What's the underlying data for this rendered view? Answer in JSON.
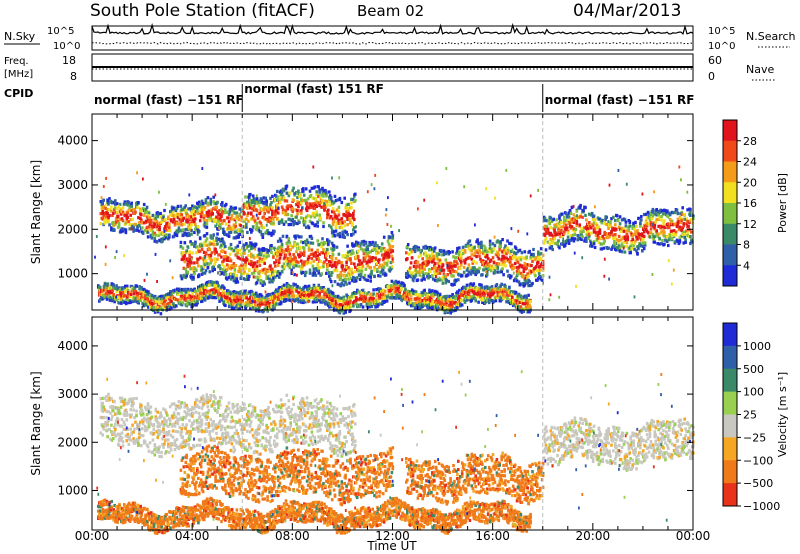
{
  "title": "South Pole Station (fitACF)",
  "beam": "Beam 02",
  "date": "04/Mar/2013",
  "nsky_label": "N.Sky",
  "nsearch_label": "N.Search",
  "freq_label": "Freq.",
  "freq_unit": "[MHz]",
  "nave_label": "Nave",
  "cpid_label": "CPID",
  "noise_ticks_left": [
    "10^5",
    "10^0"
  ],
  "noise_ticks_right": [
    "10^5",
    "10^0"
  ],
  "freq_ticks": [
    "18",
    "8"
  ],
  "nave_ticks": [
    "60",
    "0"
  ],
  "cpid_segments": [
    {
      "start": 0.0,
      "end": 6.0,
      "label": "normal (fast) −151 RF"
    },
    {
      "start": 6.0,
      "end": 18.0,
      "label": "normal (fast) 151 RF"
    },
    {
      "start": 18.0,
      "end": 24.0,
      "label": "normal (fast) −151 RF"
    }
  ],
  "chart_data": [
    {
      "type": "heatmap",
      "panel": "power",
      "ylabel": "Slant Range [km]",
      "xlabel": "Time UT",
      "xlim": [
        0,
        24
      ],
      "ylim": [
        180,
        4600
      ],
      "x_ticks": [
        "00:00",
        "04:00",
        "08:00",
        "12:00",
        "16:00",
        "20:00",
        "00:00"
      ],
      "y_ticks": [
        1000,
        2000,
        3000,
        4000
      ],
      "colorbar": {
        "label": "Power [dB]",
        "ticks": [
          "4",
          "8",
          "12",
          "16",
          "20",
          "24",
          "28"
        ],
        "colors": [
          "#1f2bd6",
          "#2f5fa8",
          "#3a8a6a",
          "#7fbf3f",
          "#f2e020",
          "#f59b1a",
          "#f0491a",
          "#e0141a"
        ]
      },
      "bands": [
        {
          "x": [
            0.3,
            6.0
          ],
          "y": [
            1900,
            2600
          ],
          "note": "upper echo band"
        },
        {
          "x": [
            6.0,
            10.5
          ],
          "y": [
            2000,
            2900
          ],
          "note": "upper echo band"
        },
        {
          "x": [
            3.5,
            12.0
          ],
          "y": [
            900,
            1800
          ],
          "note": "lower echo band"
        },
        {
          "x": [
            12.5,
            18.0
          ],
          "y": [
            900,
            1700
          ],
          "note": "lower echo band"
        },
        {
          "x": [
            18.0,
            24.0
          ],
          "y": [
            1600,
            2400
          ],
          "note": "upper echo band"
        },
        {
          "x": [
            0.2,
            17.5
          ],
          "y": [
            300,
            700
          ],
          "note": "near range band"
        }
      ]
    },
    {
      "type": "heatmap",
      "panel": "velocity",
      "ylabel": "Slant Range [km]",
      "xlabel": "Time UT",
      "xlim": [
        0,
        24
      ],
      "ylim": [
        180,
        4600
      ],
      "x_ticks": [
        "00:00",
        "04:00",
        "08:00",
        "12:00",
        "16:00",
        "20:00",
        "00:00"
      ],
      "y_ticks": [
        1000,
        2000,
        3000,
        4000
      ],
      "colorbar": {
        "label": "Velocity [m s⁻¹]",
        "ticks": [
          "1000",
          "500",
          "100",
          "25",
          "−25",
          "−100",
          "−500",
          "−1000"
        ],
        "colors": [
          "#1f2bd6",
          "#2f5fa8",
          "#3a8a6a",
          "#9ad050",
          "#c8c8c0",
          "#f5a623",
          "#f07a1a",
          "#e8321a"
        ]
      },
      "bands": [
        {
          "x": [
            0.3,
            10.5
          ],
          "y": [
            1900,
            2900
          ],
          "note": "grey near-zero velocity"
        },
        {
          "x": [
            3.5,
            12.0
          ],
          "y": [
            900,
            1800
          ],
          "note": "orange negative velocity"
        },
        {
          "x": [
            12.5,
            18.0
          ],
          "y": [
            900,
            1700
          ],
          "note": "orange negative velocity"
        },
        {
          "x": [
            18.0,
            24.0
          ],
          "y": [
            1600,
            2400
          ],
          "note": "grey near-zero velocity"
        },
        {
          "x": [
            0.2,
            17.5
          ],
          "y": [
            300,
            700
          ],
          "note": "orange near range"
        }
      ]
    }
  ],
  "time_label": "Time UT"
}
